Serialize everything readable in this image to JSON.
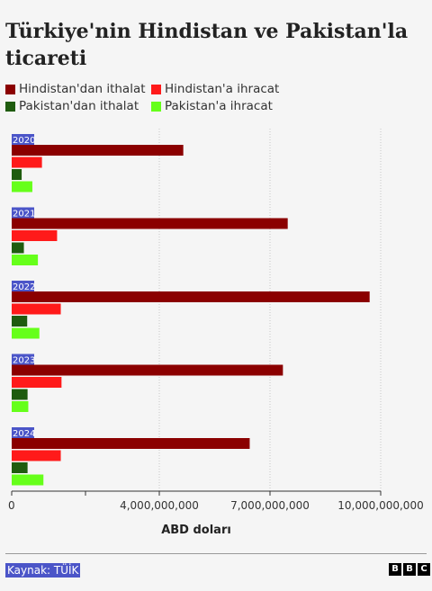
{
  "header": {
    "title": "Türkiye'nin Hindistan ve Pakistan'la ticareti"
  },
  "legend": [
    {
      "label": "Hindistan'dan ithalat",
      "color": "#8b0000"
    },
    {
      "label": "Hindistan'a ihracat",
      "color": "#ff1a1a"
    },
    {
      "label": "Pakistan'dan ithalat",
      "color": "#1f5c0f"
    },
    {
      "label": "Pakistan'a ihracat",
      "color": "#66ff1a"
    }
  ],
  "chart_data": {
    "type": "bar",
    "orientation": "horizontal",
    "categories": [
      "2020",
      "2021",
      "2022",
      "2023",
      "2024"
    ],
    "series": [
      {
        "name": "Hindistan'dan ithalat",
        "color": "#8b0000",
        "values": [
          4650000000,
          7480000000,
          9700000000,
          7350000000,
          6450000000
        ]
      },
      {
        "name": "Hindistan'a ihracat",
        "color": "#ff1a1a",
        "values": [
          820000000,
          1230000000,
          1330000000,
          1350000000,
          1330000000
        ]
      },
      {
        "name": "Pakistan'dan ithalat",
        "color": "#1f5c0f",
        "values": [
          270000000,
          330000000,
          420000000,
          430000000,
          430000000
        ]
      },
      {
        "name": "Pakistan'a ihracat",
        "color": "#66ff1a",
        "values": [
          560000000,
          710000000,
          750000000,
          450000000,
          860000000
        ]
      }
    ],
    "xlabel": "ABD doları",
    "xticks": [
      0,
      4000000000,
      7000000000,
      10000000000
    ],
    "xtick_labels": [
      "0",
      "4,000,000,000",
      "7,000,000,000",
      "10,000,000,000"
    ],
    "xlim": [
      0,
      10000000000
    ],
    "category_label_color": "#4b55c8"
  },
  "footer": {
    "source": "Kaynak: TÜİK",
    "logo": [
      "B",
      "B",
      "C"
    ]
  }
}
